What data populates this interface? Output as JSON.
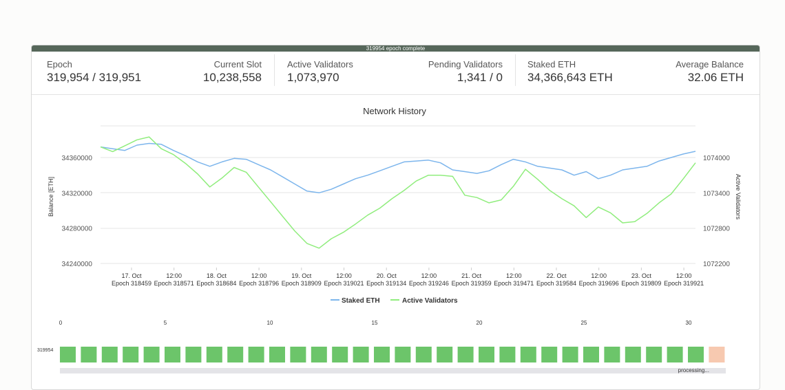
{
  "banner": "319954 epoch complete",
  "stats": {
    "epoch": {
      "label": "Epoch",
      "value": "319,954 / 319,951"
    },
    "current_slot": {
      "label": "Current Slot",
      "value": "10,238,558"
    },
    "active_validators": {
      "label": "Active Validators",
      "value": "1,073,970"
    },
    "pending_validators": {
      "label": "Pending Validators",
      "value": "1,341 / 0"
    },
    "staked_eth": {
      "label": "Staked ETH",
      "value": "34,366,643 ETH"
    },
    "average_balance": {
      "label": "Average Balance",
      "value": "32.06 ETH"
    }
  },
  "chart_data": {
    "type": "line",
    "title": "Network History",
    "ylabel": "Balance [ETH]",
    "y2label": "Active Validators",
    "ylim": [
      34240000,
      34360000
    ],
    "y2lim": [
      1072200,
      1074000
    ],
    "yticks": [
      "34360000",
      "34320000",
      "34280000",
      "34240000"
    ],
    "y2ticks": [
      "1074000",
      "1073400",
      "1072800",
      "1072200"
    ],
    "x_ticks": [
      {
        "date": "17. Oct",
        "epoch": "Epoch 318459"
      },
      {
        "date": "12:00",
        "epoch": "Epoch 318571"
      },
      {
        "date": "18. Oct",
        "epoch": "Epoch 318684"
      },
      {
        "date": "12:00",
        "epoch": "Epoch 318796"
      },
      {
        "date": "19. Oct",
        "epoch": "Epoch 318909"
      },
      {
        "date": "12:00",
        "epoch": "Epoch 319021"
      },
      {
        "date": "20. Oct",
        "epoch": "Epoch 319134"
      },
      {
        "date": "12:00",
        "epoch": "Epoch 319246"
      },
      {
        "date": "21. Oct",
        "epoch": "Epoch 319359"
      },
      {
        "date": "12:00",
        "epoch": "Epoch 319471"
      },
      {
        "date": "22. Oct",
        "epoch": "Epoch 319584"
      },
      {
        "date": "12:00",
        "epoch": "Epoch 319696"
      },
      {
        "date": "23. Oct",
        "epoch": "Epoch 319809"
      },
      {
        "date": "12:00",
        "epoch": "Epoch 319921"
      }
    ],
    "legend_position": "bottom-center",
    "grid": true,
    "series": [
      {
        "name": "Staked ETH",
        "axis": "left",
        "color": "#7cb5ec",
        "values": [
          34372000,
          34370000,
          34368000,
          34374000,
          34376000,
          34375000,
          34368000,
          34362000,
          34355000,
          34350000,
          34355000,
          34359000,
          34358000,
          34352000,
          34346000,
          34338000,
          34330000,
          34322000,
          34320000,
          34324000,
          34330000,
          34336000,
          34340000,
          34345000,
          34350000,
          34355000,
          34356000,
          34357000,
          34354000,
          34346000,
          34344000,
          34342000,
          34345000,
          34352000,
          34358000,
          34355000,
          34350000,
          34348000,
          34346000,
          34340000,
          34344000,
          34336000,
          34340000,
          34346000,
          34348000,
          34350000,
          34356000,
          34360000,
          34364000,
          34367000
        ]
      },
      {
        "name": "Active Validators",
        "axis": "right",
        "color": "#90ed7d",
        "values": [
          1074180,
          1074100,
          1074200,
          1074300,
          1074350,
          1074150,
          1074050,
          1073900,
          1073720,
          1073500,
          1073650,
          1073830,
          1073750,
          1073500,
          1073250,
          1073000,
          1072750,
          1072540,
          1072460,
          1072620,
          1072730,
          1072870,
          1073020,
          1073140,
          1073300,
          1073440,
          1073600,
          1073700,
          1073700,
          1073680,
          1073360,
          1073320,
          1073230,
          1073280,
          1073510,
          1073800,
          1073630,
          1073440,
          1073300,
          1073180,
          1072980,
          1073160,
          1073060,
          1072890,
          1072910,
          1073050,
          1073230,
          1073380,
          1073640,
          1073910
        ]
      }
    ]
  },
  "slot_grid": {
    "epoch_label": "319954",
    "scale_ticks": [
      "0",
      "5",
      "10",
      "15",
      "20",
      "25",
      "30"
    ],
    "slots": [
      "done",
      "done",
      "done",
      "done",
      "done",
      "done",
      "done",
      "done",
      "done",
      "done",
      "done",
      "done",
      "done",
      "done",
      "done",
      "done",
      "done",
      "done",
      "done",
      "done",
      "done",
      "done",
      "done",
      "done",
      "done",
      "done",
      "done",
      "done",
      "done",
      "done",
      "done",
      "pending"
    ],
    "status_text": "processing..."
  }
}
